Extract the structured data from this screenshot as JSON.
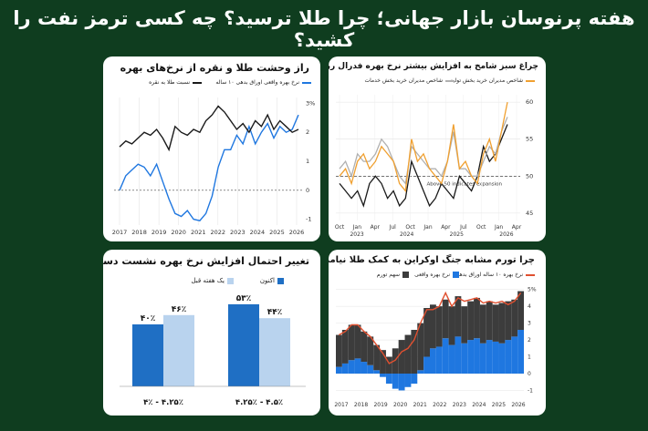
{
  "headline": "هفته پرنوسان بازار جهانی؛ چرا طلا ترسید؟ چه کسی ترمز نفت را کشید؟",
  "colors": {
    "background": "#0f3d1f",
    "blue": "#1f77e0",
    "black": "#1a1a1a",
    "orange": "#f0a030",
    "gray": "#b0b0b0",
    "red": "#e05030",
    "darkbar": "#3c3c3c",
    "bar_now": "#1f6fc4",
    "bar_prev": "#b9d3ee"
  },
  "chart_data": [
    {
      "type": "line",
      "title": "راز وحشت طلا و نقره از نرخ‌های بهره",
      "legend": [
        "نرخ بهره واقعی اوراق بدهی ۱۰ ساله",
        "نسبت طلا به نقره"
      ],
      "x_ticks": [
        "2017",
        "2018",
        "2019",
        "2020",
        "2021",
        "2022",
        "2023",
        "2024",
        "2025",
        "2026"
      ],
      "y_ticks": [
        "3%",
        "2",
        "1",
        "0",
        "-1"
      ],
      "ylim": [
        -1.2,
        3.2
      ],
      "series": [
        {
          "name": "نرخ بهره واقعی اوراق بدهی ۱۰ ساله",
          "color": "blue",
          "values": [
            0.0,
            0.5,
            0.7,
            0.9,
            0.8,
            0.5,
            0.9,
            0.3,
            -0.3,
            -0.8,
            -0.9,
            -0.7,
            -1.0,
            -1.05,
            -0.8,
            -0.2,
            0.8,
            1.4,
            1.4,
            1.9,
            1.6,
            2.2,
            1.6,
            2.0,
            2.3,
            1.8,
            2.2,
            2.0,
            2.1,
            2.6
          ]
        },
        {
          "name": "نسبت طلا به نقره",
          "color": "black",
          "values": [
            1.5,
            1.7,
            1.6,
            1.8,
            2.0,
            1.9,
            2.1,
            1.8,
            1.4,
            2.2,
            2.0,
            1.9,
            2.1,
            2.0,
            2.4,
            2.6,
            2.9,
            2.7,
            2.4,
            2.1,
            2.3,
            2.0,
            2.4,
            2.2,
            2.6,
            2.1,
            2.4,
            2.2,
            2.0,
            2.1
          ]
        }
      ]
    },
    {
      "type": "line",
      "title": "چراغ سبز شامخ به افزایش بیشتر نرخ بهره فدرال رزرو",
      "legend": [
        "شاخص مدیران خرید بخش تولید",
        "شاخص مدیران خرید بخش خدمات"
      ],
      "x_ticks": [
        "Oct",
        "Jan",
        "Apr",
        "Jul",
        "Oct",
        "Jan",
        "Apr",
        "Jul",
        "Oct",
        "Jan",
        "Apr"
      ],
      "year_labels": [
        "2023",
        "2024",
        "2025",
        "2026"
      ],
      "y_ticks": [
        "60",
        "55",
        "50",
        "45"
      ],
      "ylim": [
        44,
        61
      ],
      "annotation": "Above 50 indicates expansion",
      "series": [
        {
          "name": "شاخص مدیران خرید بخش تولید",
          "color": "orange",
          "values": [
            50,
            51,
            49,
            52,
            53,
            51,
            52,
            54,
            53,
            52,
            49,
            48,
            55,
            52,
            53,
            51,
            50,
            49,
            52,
            57,
            51,
            52,
            50,
            49,
            53,
            55,
            52,
            56,
            60
          ]
        },
        {
          "name": "شاخص مدیران خرید بخش خدمات",
          "color": "gray",
          "values": [
            51,
            52,
            50,
            53,
            52,
            52,
            53,
            55,
            54,
            52,
            50,
            49,
            54,
            53,
            52,
            51,
            51,
            50,
            52,
            56,
            51,
            51,
            50,
            50,
            52,
            54,
            53,
            56,
            58
          ]
        },
        {
          "name": "",
          "color": "black",
          "values": [
            49,
            48,
            47,
            48,
            46,
            49,
            50,
            49,
            47,
            48,
            46,
            47,
            52,
            50,
            48,
            46,
            47,
            49,
            48,
            47,
            50,
            49,
            48,
            50,
            54,
            52,
            53,
            55,
            57
          ]
        }
      ]
    },
    {
      "type": "bar",
      "title": "تغییر احتمال افزایش نرخ بهره نشست دسامبر",
      "legend": [
        "اکنون",
        "یک هفته قبل"
      ],
      "categories": [
        "۴٪ - ۴.۲۵٪",
        "۴.۲۵٪ - ۴.۵٪"
      ],
      "series": [
        {
          "name": "اکنون",
          "color": "bar_now",
          "values": [
            40,
            53
          ],
          "labels": [
            "۴۰٪",
            "۵۳٪"
          ]
        },
        {
          "name": "یک هفته قبل",
          "color": "bar_prev",
          "values": [
            46,
            44
          ],
          "labels": [
            "۴۶٪",
            "۴۴٪"
          ]
        }
      ],
      "ylim": [
        0,
        60
      ]
    },
    {
      "type": "area",
      "title": "چرا تورم مشابه جنگ اوکراین به کمک طلا نیامد؟",
      "legend": [
        "نرخ بهره ۱۰ ساله اوراق بدهی",
        "نرخ بهره واقعی",
        "سهم تورم"
      ],
      "x_ticks": [
        "2017",
        "2018",
        "2019",
        "2020",
        "2021",
        "2022",
        "2023",
        "2024",
        "2025",
        "2026"
      ],
      "y_ticks": [
        "5%",
        "4",
        "3",
        "2",
        "1",
        "0",
        "-1"
      ],
      "ylim": [
        -1.3,
        5.2
      ],
      "series": [
        {
          "name": "سهم تورم",
          "color": "darkbar",
          "values": [
            1.9,
            2.0,
            2.1,
            2.0,
            1.8,
            1.7,
            1.5,
            1.4,
            1.0,
            1.5,
            2.0,
            2.3,
            2.6,
            2.8,
            2.9,
            2.6,
            2.4,
            2.3,
            2.3,
            2.4,
            2.2,
            2.3,
            2.4,
            2.3,
            2.3,
            2.2,
            2.4,
            2.3,
            2.2,
            2.3
          ]
        },
        {
          "name": "نرخ بهره واقعی",
          "color": "blue",
          "values": [
            0.4,
            0.6,
            0.8,
            0.9,
            0.7,
            0.5,
            0.2,
            -0.2,
            -0.6,
            -0.9,
            -1.0,
            -0.8,
            -0.6,
            0.2,
            1.0,
            1.5,
            1.6,
            2.1,
            1.7,
            2.2,
            1.8,
            2.0,
            2.1,
            1.8,
            2.0,
            1.9,
            1.8,
            2.0,
            2.2,
            2.6
          ]
        },
        {
          "name": "نرخ بهره ۱۰ ساله اوراق بدهی",
          "color": "red",
          "values": [
            2.3,
            2.5,
            2.9,
            2.9,
            2.5,
            2.2,
            1.7,
            1.2,
            0.6,
            0.8,
            1.3,
            1.5,
            2.0,
            3.0,
            3.8,
            3.8,
            4.0,
            4.8,
            4.0,
            4.5,
            4.3,
            4.4,
            4.5,
            4.2,
            4.3,
            4.2,
            4.3,
            4.1,
            4.3,
            4.8
          ]
        }
      ]
    }
  ]
}
